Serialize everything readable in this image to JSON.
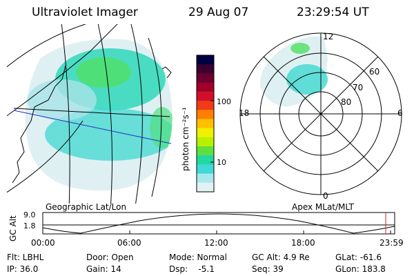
{
  "header": {
    "instrument": "Ultraviolet Imager",
    "date": "29 Aug 07",
    "time": "23:29:54 UT"
  },
  "colorbar": {
    "unit_label": "photon cm⁻²s⁻¹",
    "ticks": [
      "100",
      "10"
    ],
    "colors": [
      "#000040",
      "#3a0030",
      "#6b0030",
      "#a0002a",
      "#d0102a",
      "#f03a1a",
      "#ff7f00",
      "#ffc000",
      "#f0f000",
      "#b8f000",
      "#60e040",
      "#20d8a0",
      "#40d8d8",
      "#a8e8ec",
      "#e2f2f4"
    ]
  },
  "geo_panel": {
    "label": "Geographic Lat/Lon"
  },
  "polar_panel": {
    "label": "Apex MLat/MLT",
    "mlt_labels": {
      "top": "12",
      "left": "18",
      "right": "6",
      "bottom": "0"
    },
    "lat_labels": [
      "60",
      "70",
      "80"
    ]
  },
  "altitude_strip": {
    "axis_label": "GC Alt",
    "y_ticks": [
      "9.0",
      "1.8"
    ],
    "x_ticks": [
      "00:00",
      "06:00",
      "12:00",
      "18:00",
      "23:59"
    ],
    "marker_color": "#d02020"
  },
  "status": {
    "flt": "Flt: LBHL",
    "ip": "IP: 36.0",
    "door": "Door: Open",
    "gain": "Gain: 14",
    "mode": "Mode: Normal",
    "dsp": "Dsp:    -5.1",
    "gc_alt": "GC Alt: 4.9 Re",
    "seq": "Seq: 39",
    "glat": "GLat: -61.6",
    "glon": "GLon: 183.8"
  }
}
